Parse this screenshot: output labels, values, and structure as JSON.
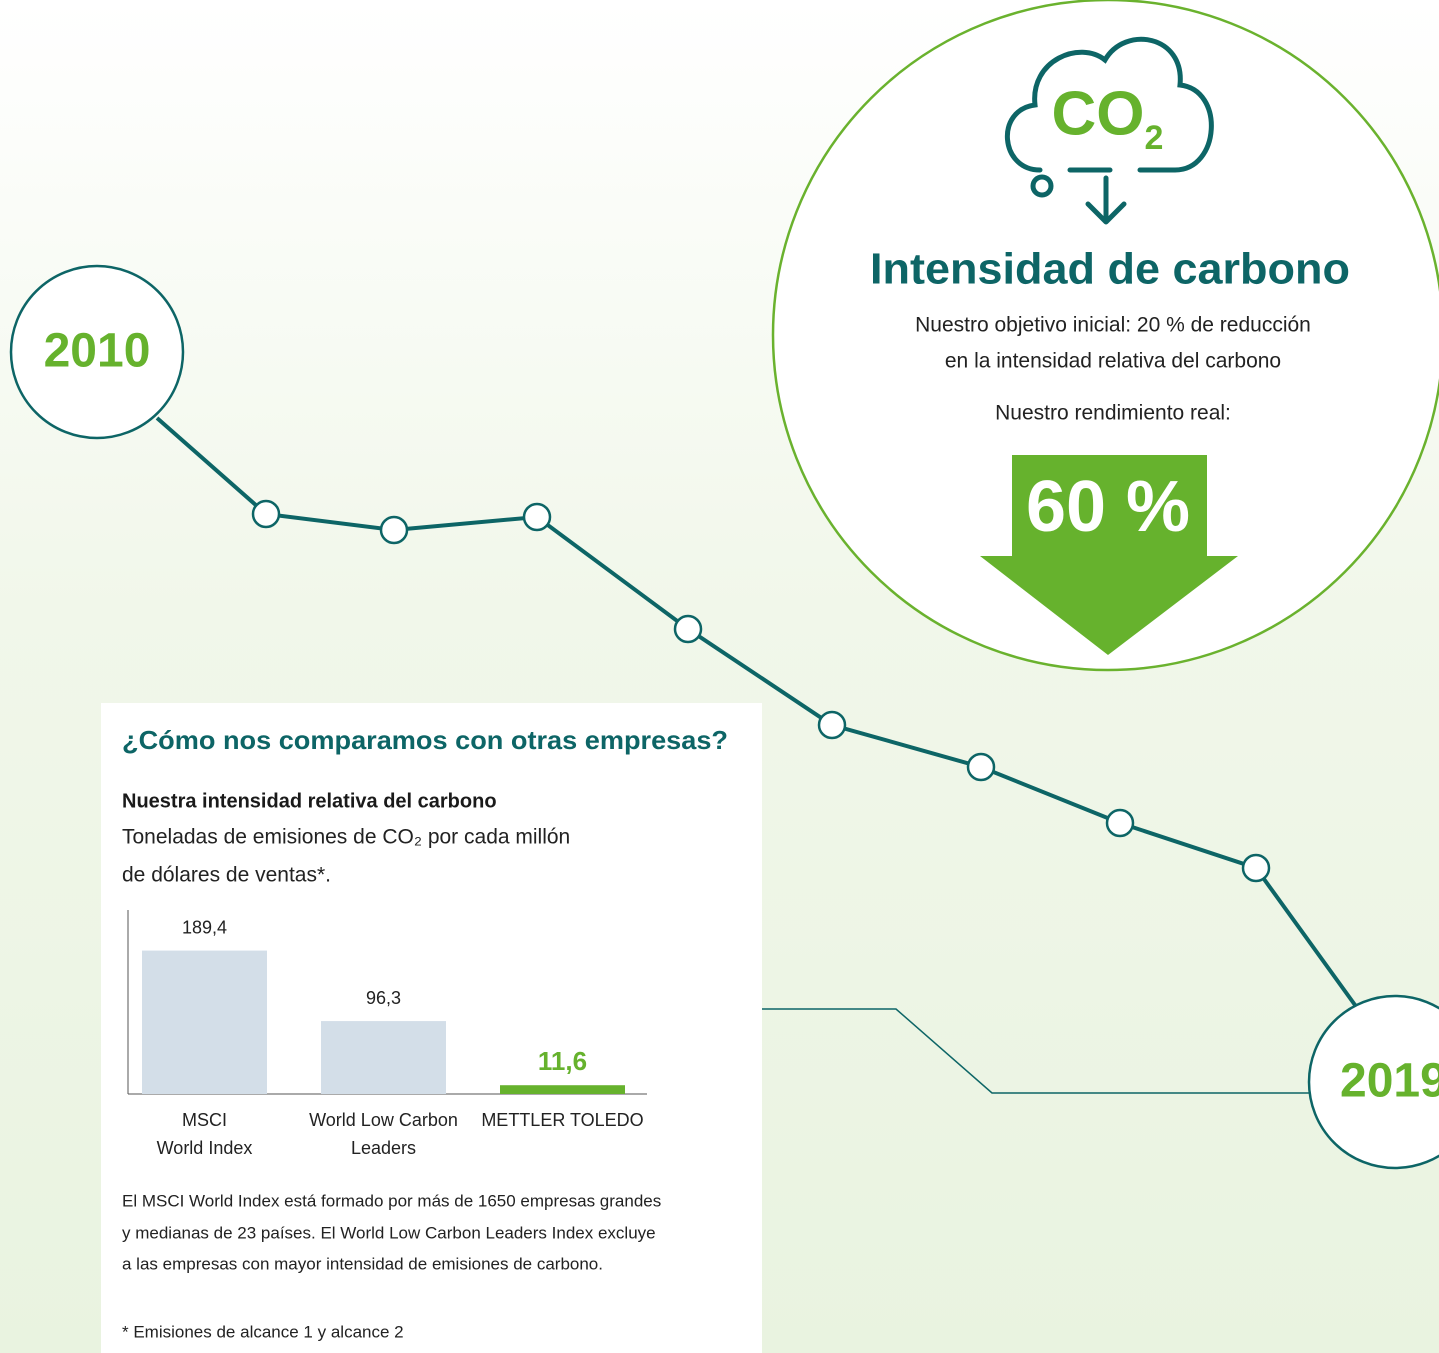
{
  "timeline": {
    "start": "2010",
    "end": "2019"
  },
  "target": {
    "icon_text": "CO",
    "icon_sub": "2",
    "title": "Intensidad de carbono",
    "lines": [
      "Nuestro objetivo inicial: 20 % de reducción",
      "en la intensidad relativa del carbono"
    ],
    "performance_label": "Nuestro rendimiento real:",
    "performance_value": "60 %"
  },
  "panel": {
    "heading": "¿Cómo nos comparamos con otras empresas?",
    "subheading": "Nuestra intensidad relativa del carbono",
    "description": [
      "Toneladas de emisiones de CO₂ por cada millón",
      "de dólares de ventas*."
    ],
    "notes": [
      "El MSCI World Index está formado por más de 1650 empresas grandes",
      "y medianas de 23 países. El World Low Carbon Leaders Index excluye",
      "a las empresas con mayor intensidad de emisiones de carbono."
    ],
    "footnote": "* Emisiones de alcance 1 y alcance 2"
  },
  "chart_data": {
    "type": "bar",
    "categories": [
      [
        "MSCI",
        "World Index"
      ],
      [
        "World Low Carbon",
        "Leaders"
      ],
      [
        "METTLER TOLEDO"
      ]
    ],
    "values": [
      189.4,
      96.3,
      11.6
    ],
    "value_labels": [
      "189,4",
      "96,3",
      "11,6"
    ],
    "colors": [
      "#d3dee8",
      "#d3dee8",
      "#66b22d"
    ],
    "ylim": [
      0,
      243
    ]
  }
}
